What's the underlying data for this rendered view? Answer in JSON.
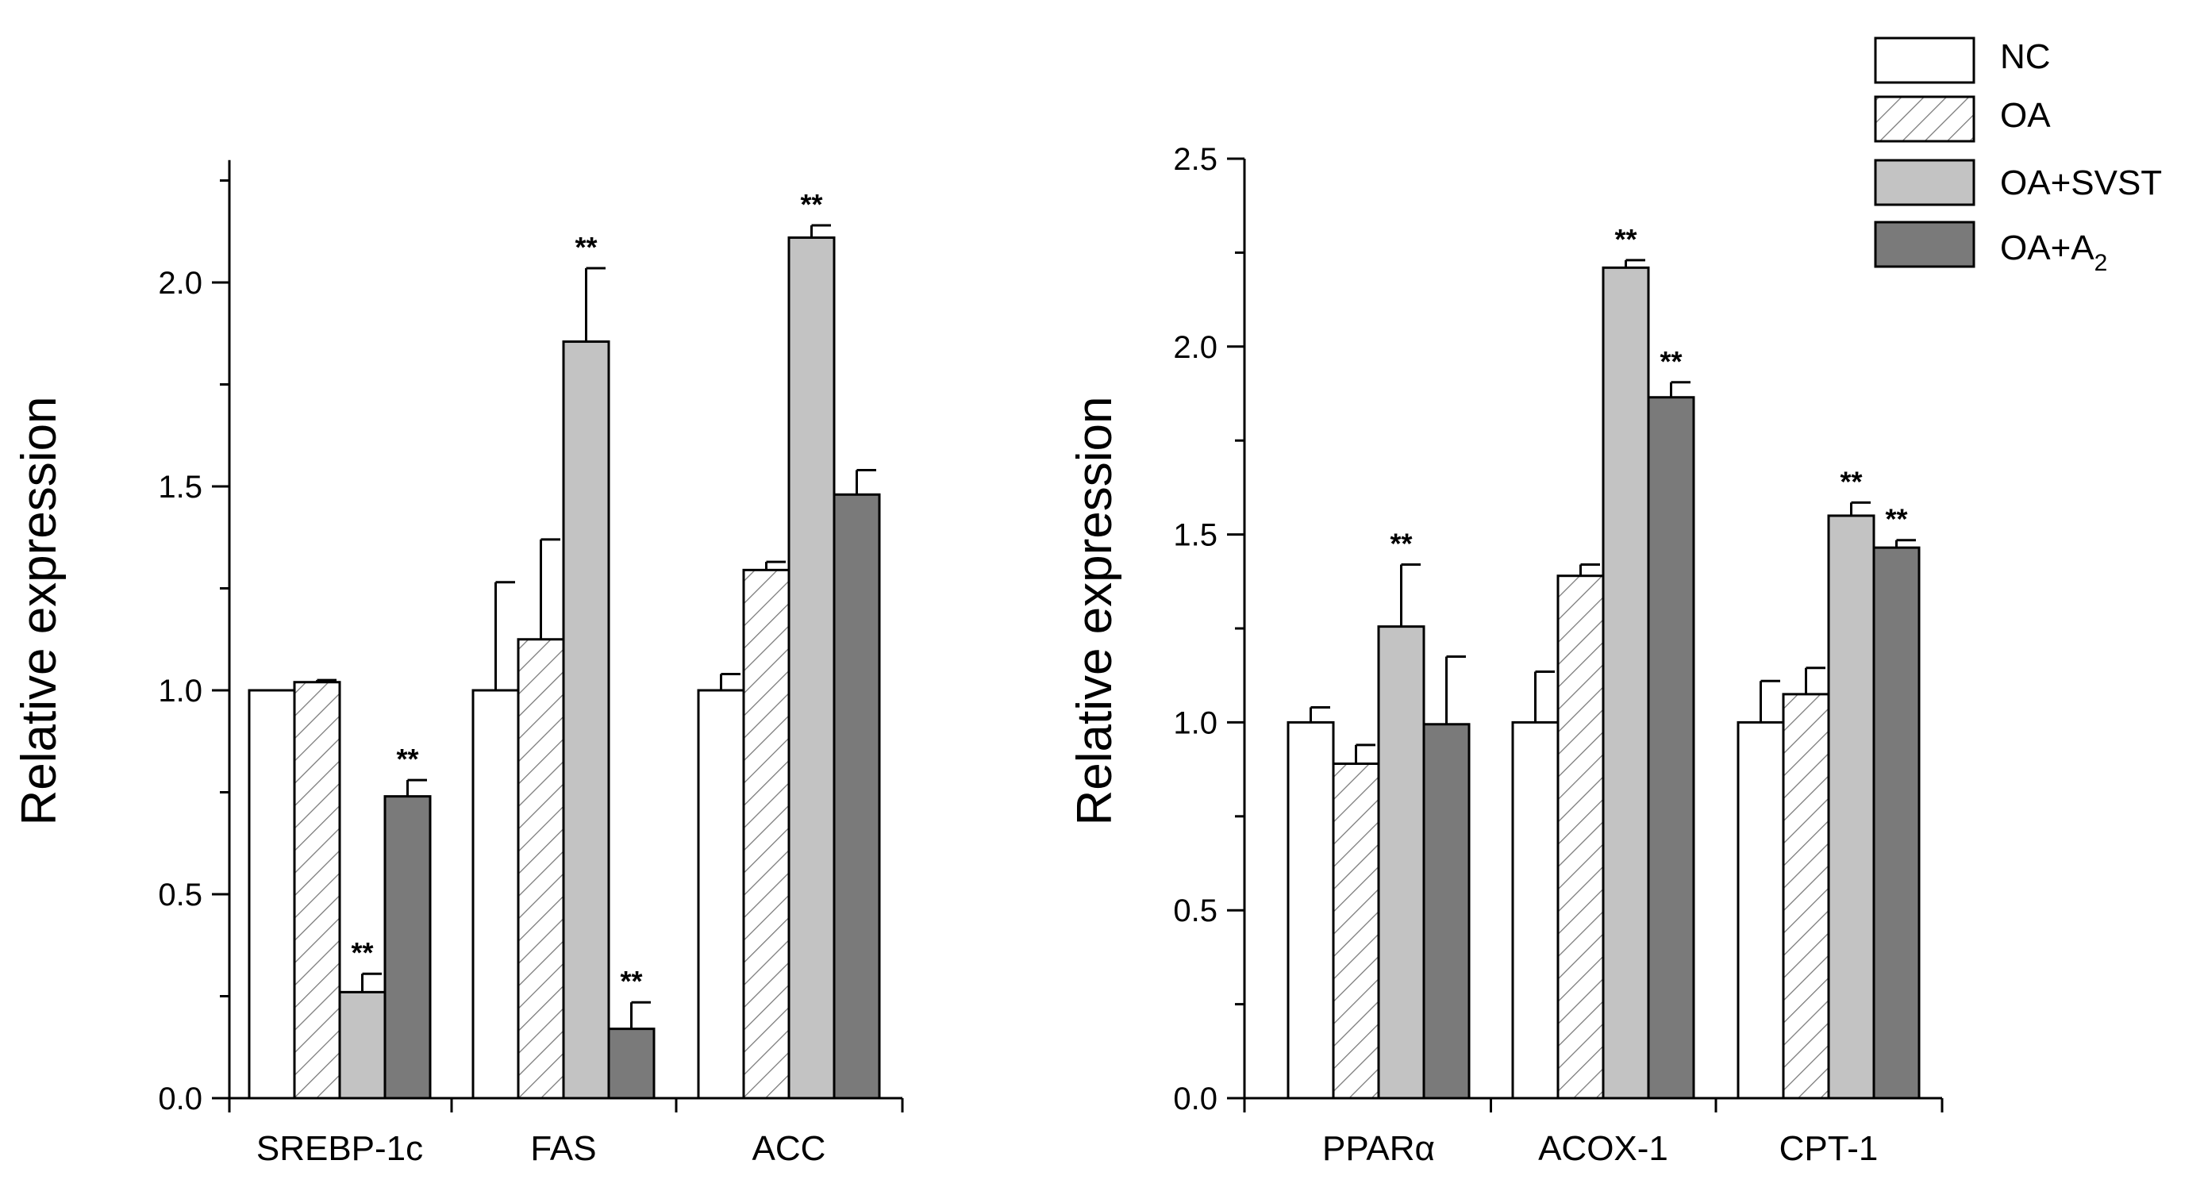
{
  "chart_data": [
    {
      "type": "bar",
      "panel": "left",
      "ylabel": "Relative expression",
      "ylim": [
        0,
        2.3
      ],
      "yticks": [
        "0.0",
        "0.5",
        "1.0",
        "1.5",
        "2.0"
      ],
      "categories": [
        "SREBP-1c",
        "FAS",
        "ACC"
      ],
      "series": [
        {
          "name": "NC",
          "values": [
            1.0,
            1.0,
            1.0
          ],
          "errors": [
            0.0,
            0.265,
            0.04
          ],
          "sig": [
            "",
            "",
            ""
          ]
        },
        {
          "name": "OA",
          "values": [
            1.02,
            1.125,
            1.295
          ],
          "errors": [
            0.005,
            0.245,
            0.02
          ],
          "sig": [
            "",
            "",
            ""
          ]
        },
        {
          "name": "OA+SVST",
          "values": [
            0.26,
            1.855,
            2.11
          ],
          "errors": [
            0.045,
            0.18,
            0.03
          ],
          "sig": [
            "**",
            "**",
            "**"
          ]
        },
        {
          "name": "OA+A2",
          "values": [
            0.74,
            0.17,
            1.48
          ],
          "errors": [
            0.04,
            0.065,
            0.06
          ],
          "sig": [
            "**",
            "**",
            ""
          ]
        }
      ]
    },
    {
      "type": "bar",
      "panel": "right",
      "ylabel": "Relative expression",
      "ylim": [
        0,
        2.5
      ],
      "yticks": [
        "0.0",
        "0.5",
        "1.0",
        "1.5",
        "2.0",
        "2.5"
      ],
      "categories": [
        "PPARα",
        "ACOX-1",
        "CPT-1"
      ],
      "series": [
        {
          "name": "NC",
          "values": [
            1.0,
            1.0,
            1.0
          ],
          "errors": [
            0.04,
            0.135,
            0.11
          ],
          "sig": [
            "",
            "",
            ""
          ]
        },
        {
          "name": "OA",
          "values": [
            0.89,
            1.39,
            1.075
          ],
          "errors": [
            0.05,
            0.03,
            0.07
          ],
          "sig": [
            "",
            "",
            ""
          ]
        },
        {
          "name": "OA+SVST",
          "values": [
            1.255,
            2.21,
            1.55
          ],
          "errors": [
            0.165,
            0.02,
            0.035
          ],
          "sig": [
            "**",
            "**",
            "**"
          ]
        },
        {
          "name": "OA+A2",
          "values": [
            0.995,
            1.865,
            1.465
          ],
          "errors": [
            0.18,
            0.04,
            0.02
          ],
          "sig": [
            "",
            "**",
            "**"
          ]
        }
      ]
    }
  ],
  "legend": {
    "items": [
      {
        "label": "NC",
        "sub": "",
        "fill": "#ffffff",
        "pattern": "none"
      },
      {
        "label": "OA",
        "sub": "",
        "fill": "#ffffff",
        "pattern": "hatch"
      },
      {
        "label": "OA+SVST",
        "sub": "",
        "fill": "#c3c3c3",
        "pattern": "none"
      },
      {
        "label": "OA+A",
        "sub": "2",
        "fill": "#7a7a7a",
        "pattern": "none"
      }
    ]
  }
}
